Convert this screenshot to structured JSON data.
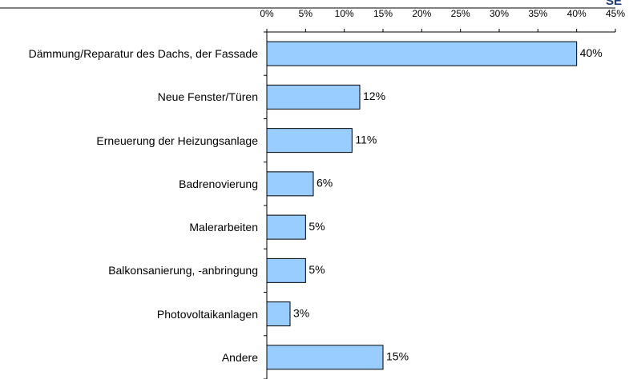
{
  "logo": "SE",
  "chart_data": {
    "type": "bar",
    "orientation": "horizontal",
    "categories": [
      "Dämmung/Reparatur des Dachs, der Fassade",
      "Neue Fenster/Türen",
      "Erneuerung der Heizungsanlage",
      "Badrenovierung",
      "Malerarbeiten",
      "Balkonsanierung, -anbringung",
      "Photovoltaikanlagen",
      "Andere"
    ],
    "values": [
      40,
      12,
      11,
      6,
      5,
      5,
      3,
      15
    ],
    "value_labels": [
      "40%",
      "12%",
      "11%",
      "6%",
      "5%",
      "5%",
      "3%",
      "15%"
    ],
    "color": "#99ccff",
    "xlim": [
      0,
      45
    ],
    "xticks": [
      {
        "value": 0,
        "label": "0%"
      },
      {
        "value": 5,
        "label": "5%"
      },
      {
        "value": 10,
        "label": "10%"
      },
      {
        "value": 15,
        "label": "15%"
      },
      {
        "value": 20,
        "label": "20%"
      },
      {
        "value": 25,
        "label": "25%"
      },
      {
        "value": 30,
        "label": "30%"
      },
      {
        "value": 35,
        "label": "35%"
      },
      {
        "value": 40,
        "label": "40%"
      },
      {
        "value": 45,
        "label": "45%"
      }
    ],
    "grid": false
  }
}
